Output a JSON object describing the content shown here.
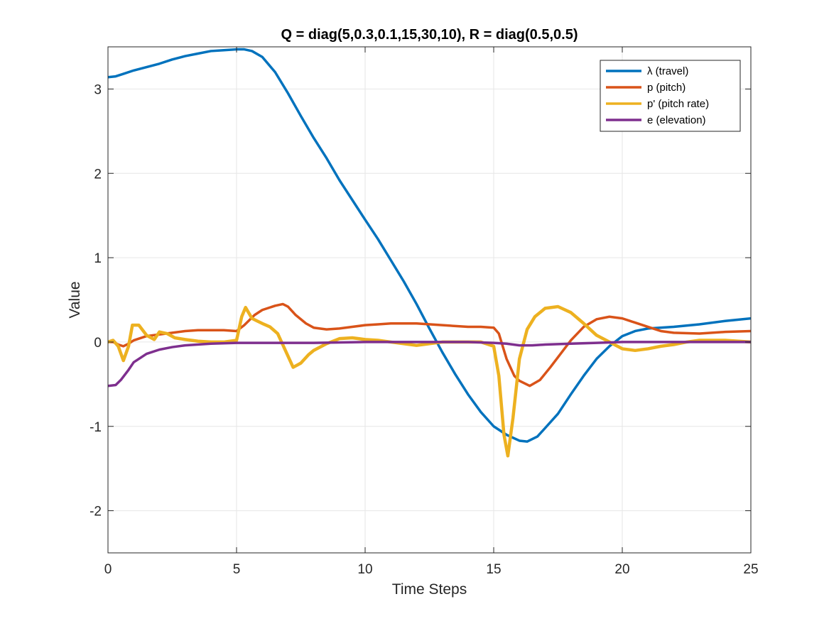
{
  "chart_data": {
    "type": "line",
    "title": "Q = diag(5,0.3,0.1,15,30,10), R = diag(0.5,0.5)",
    "xlabel": "Time Steps",
    "ylabel": "Value",
    "xlim": [
      0,
      25
    ],
    "ylim": [
      -2.5,
      3.5
    ],
    "xticks": [
      0,
      5,
      10,
      15,
      20,
      25
    ],
    "yticks": [
      -2,
      -1,
      0,
      1,
      2,
      3
    ],
    "xtick_labels": [
      "0",
      "5",
      "10",
      "15",
      "20",
      "25"
    ],
    "ytick_labels": [
      "-2",
      "-1",
      "0",
      "1",
      "2",
      "3"
    ],
    "grid": true,
    "legend_position": "top-right",
    "series": [
      {
        "name": "λ (travel)",
        "color": "#0072BD",
        "points": [
          [
            0,
            3.14
          ],
          [
            0.3,
            3.15
          ],
          [
            0.6,
            3.18
          ],
          [
            1,
            3.22
          ],
          [
            1.5,
            3.26
          ],
          [
            2,
            3.3
          ],
          [
            2.5,
            3.35
          ],
          [
            3,
            3.39
          ],
          [
            3.5,
            3.42
          ],
          [
            4,
            3.45
          ],
          [
            4.5,
            3.46
          ],
          [
            5,
            3.47
          ],
          [
            5.3,
            3.47
          ],
          [
            5.6,
            3.45
          ],
          [
            6,
            3.38
          ],
          [
            6.5,
            3.2
          ],
          [
            7,
            2.95
          ],
          [
            7.5,
            2.68
          ],
          [
            8,
            2.42
          ],
          [
            8.5,
            2.18
          ],
          [
            9,
            1.92
          ],
          [
            10,
            1.45
          ],
          [
            10.5,
            1.22
          ],
          [
            11,
            0.97
          ],
          [
            11.5,
            0.72
          ],
          [
            12,
            0.45
          ],
          [
            12.5,
            0.16
          ],
          [
            13,
            -0.12
          ],
          [
            13.5,
            -0.38
          ],
          [
            14,
            -0.62
          ],
          [
            14.5,
            -0.83
          ],
          [
            15,
            -1.0
          ],
          [
            15.5,
            -1.1
          ],
          [
            16,
            -1.17
          ],
          [
            16.3,
            -1.18
          ],
          [
            16.7,
            -1.12
          ],
          [
            17,
            -1.02
          ],
          [
            17.5,
            -0.85
          ],
          [
            18,
            -0.62
          ],
          [
            18.5,
            -0.4
          ],
          [
            19,
            -0.2
          ],
          [
            19.5,
            -0.05
          ],
          [
            20,
            0.07
          ],
          [
            20.5,
            0.13
          ],
          [
            21,
            0.16
          ],
          [
            22,
            0.18
          ],
          [
            23,
            0.21
          ],
          [
            24,
            0.25
          ],
          [
            25,
            0.28
          ]
        ]
      },
      {
        "name": "p (pitch)",
        "color": "#D95319",
        "points": [
          [
            0,
            0.0
          ],
          [
            0.2,
            0.0
          ],
          [
            0.4,
            -0.03
          ],
          [
            0.6,
            -0.05
          ],
          [
            0.8,
            -0.02
          ],
          [
            1,
            0.02
          ],
          [
            1.5,
            0.07
          ],
          [
            2,
            0.09
          ],
          [
            2.5,
            0.11
          ],
          [
            3,
            0.13
          ],
          [
            3.5,
            0.14
          ],
          [
            4,
            0.14
          ],
          [
            4.5,
            0.14
          ],
          [
            5,
            0.13
          ],
          [
            5.3,
            0.2
          ],
          [
            5.7,
            0.32
          ],
          [
            6,
            0.38
          ],
          [
            6.5,
            0.43
          ],
          [
            6.8,
            0.45
          ],
          [
            7,
            0.42
          ],
          [
            7.3,
            0.32
          ],
          [
            7.7,
            0.22
          ],
          [
            8,
            0.17
          ],
          [
            8.5,
            0.15
          ],
          [
            9,
            0.16
          ],
          [
            9.5,
            0.18
          ],
          [
            10,
            0.2
          ],
          [
            10.5,
            0.21
          ],
          [
            11,
            0.22
          ],
          [
            12,
            0.22
          ],
          [
            13,
            0.2
          ],
          [
            14,
            0.18
          ],
          [
            14.5,
            0.18
          ],
          [
            15,
            0.17
          ],
          [
            15.2,
            0.1
          ],
          [
            15.5,
            -0.2
          ],
          [
            15.8,
            -0.4
          ],
          [
            16,
            -0.46
          ],
          [
            16.4,
            -0.52
          ],
          [
            16.8,
            -0.45
          ],
          [
            17.2,
            -0.3
          ],
          [
            17.7,
            -0.1
          ],
          [
            18,
            0.02
          ],
          [
            18.5,
            0.18
          ],
          [
            19,
            0.27
          ],
          [
            19.5,
            0.3
          ],
          [
            20,
            0.28
          ],
          [
            20.5,
            0.23
          ],
          [
            21,
            0.18
          ],
          [
            21.5,
            0.13
          ],
          [
            22,
            0.11
          ],
          [
            23,
            0.1
          ],
          [
            24,
            0.12
          ],
          [
            25,
            0.13
          ]
        ]
      },
      {
        "name": "p' (pitch rate)",
        "color": "#EDB120",
        "points": [
          [
            0,
            0.0
          ],
          [
            0.2,
            0.02
          ],
          [
            0.4,
            -0.05
          ],
          [
            0.6,
            -0.22
          ],
          [
            0.8,
            -0.05
          ],
          [
            0.95,
            0.2
          ],
          [
            1.2,
            0.2
          ],
          [
            1.5,
            0.08
          ],
          [
            1.8,
            0.03
          ],
          [
            2,
            0.12
          ],
          [
            2.3,
            0.1
          ],
          [
            2.6,
            0.05
          ],
          [
            3,
            0.03
          ],
          [
            3.5,
            0.01
          ],
          [
            4,
            0.0
          ],
          [
            4.5,
            0.0
          ],
          [
            5,
            0.02
          ],
          [
            5.2,
            0.3
          ],
          [
            5.35,
            0.41
          ],
          [
            5.6,
            0.28
          ],
          [
            5.8,
            0.25
          ],
          [
            6,
            0.22
          ],
          [
            6.3,
            0.18
          ],
          [
            6.6,
            0.1
          ],
          [
            6.9,
            -0.1
          ],
          [
            7.2,
            -0.3
          ],
          [
            7.5,
            -0.25
          ],
          [
            7.8,
            -0.15
          ],
          [
            8,
            -0.1
          ],
          [
            8.5,
            -0.02
          ],
          [
            9,
            0.04
          ],
          [
            9.5,
            0.05
          ],
          [
            10,
            0.03
          ],
          [
            10.5,
            0.02
          ],
          [
            11,
            0.0
          ],
          [
            11.5,
            -0.02
          ],
          [
            12,
            -0.04
          ],
          [
            12.5,
            -0.02
          ],
          [
            13,
            0.0
          ],
          [
            13.5,
            0.0
          ],
          [
            14,
            0.0
          ],
          [
            14.5,
            0.0
          ],
          [
            15,
            -0.05
          ],
          [
            15.2,
            -0.4
          ],
          [
            15.4,
            -1.1
          ],
          [
            15.55,
            -1.35
          ],
          [
            15.75,
            -0.9
          ],
          [
            16,
            -0.2
          ],
          [
            16.3,
            0.15
          ],
          [
            16.6,
            0.3
          ],
          [
            17,
            0.4
          ],
          [
            17.5,
            0.42
          ],
          [
            18,
            0.35
          ],
          [
            18.5,
            0.22
          ],
          [
            19,
            0.08
          ],
          [
            19.5,
            0.0
          ],
          [
            20,
            -0.08
          ],
          [
            20.5,
            -0.1
          ],
          [
            21,
            -0.08
          ],
          [
            21.5,
            -0.05
          ],
          [
            22,
            -0.03
          ],
          [
            22.5,
            0.0
          ],
          [
            23,
            0.02
          ],
          [
            24,
            0.02
          ],
          [
            25,
            0.0
          ]
        ]
      },
      {
        "name": "e (elevation)",
        "color": "#7E2F8E",
        "points": [
          [
            0,
            -0.52
          ],
          [
            0.3,
            -0.51
          ],
          [
            0.5,
            -0.45
          ],
          [
            0.8,
            -0.33
          ],
          [
            1,
            -0.24
          ],
          [
            1.5,
            -0.14
          ],
          [
            2,
            -0.09
          ],
          [
            2.5,
            -0.06
          ],
          [
            3,
            -0.04
          ],
          [
            4,
            -0.02
          ],
          [
            5,
            -0.01
          ],
          [
            6,
            -0.01
          ],
          [
            8,
            -0.01
          ],
          [
            10,
            0.0
          ],
          [
            12,
            0.0
          ],
          [
            14,
            0.0
          ],
          [
            15,
            -0.01
          ],
          [
            15.5,
            -0.02
          ],
          [
            16,
            -0.04
          ],
          [
            16.5,
            -0.04
          ],
          [
            17,
            -0.03
          ],
          [
            18,
            -0.02
          ],
          [
            19,
            -0.01
          ],
          [
            20,
            0.0
          ],
          [
            22,
            0.0
          ],
          [
            25,
            0.0
          ]
        ]
      }
    ]
  }
}
